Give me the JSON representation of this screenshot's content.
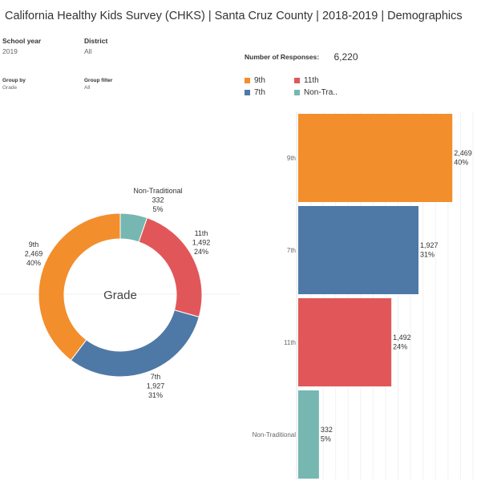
{
  "title": "California Healthy Kids Survey (CHKS) | Santa Cruz County | 2018-2019 | Demographics",
  "filters": {
    "school_year": {
      "label": "School year",
      "value": "2019"
    },
    "district": {
      "label": "District",
      "value": "All"
    },
    "group_by": {
      "label": "Group by",
      "value": "Grade"
    },
    "group_filter": {
      "label": "Group filter",
      "value": "All"
    }
  },
  "responses": {
    "label": "Number of Responses:",
    "value": "6,220"
  },
  "legend": [
    {
      "label": "9th",
      "color": "#F28E2B"
    },
    {
      "label": "11th",
      "color": "#E15759"
    },
    {
      "label": "7th",
      "color": "#4E79A7"
    },
    {
      "label": "Non-Tra..",
      "color": "#76B7B2"
    }
  ],
  "chart_data": [
    {
      "type": "pie",
      "center_label": "Grade",
      "slices": [
        {
          "label": "Non-Traditional",
          "value": 332,
          "value_text": "332",
          "percent_text": "5%",
          "color": "#76B7B2"
        },
        {
          "label": "11th",
          "value": 1492,
          "value_text": "1,492",
          "percent_text": "24%",
          "color": "#E15759"
        },
        {
          "label": "7th",
          "value": 1927,
          "value_text": "1,927",
          "percent_text": "31%",
          "color": "#4E79A7"
        },
        {
          "label": "9th",
          "value": 2469,
          "value_text": "2,469",
          "percent_text": "40%",
          "color": "#F28E2B"
        }
      ]
    },
    {
      "type": "bar",
      "orientation": "horizontal",
      "categories": [
        "9th",
        "7th",
        "11th",
        "Non-Traditional"
      ],
      "values": [
        2469,
        1927,
        1492,
        332
      ],
      "value_texts": [
        "2,469",
        "1,927",
        "1,492",
        "332"
      ],
      "percent_texts": [
        "40%",
        "31%",
        "24%",
        "5%"
      ],
      "colors": [
        "#F28E2B",
        "#4E79A7",
        "#E15759",
        "#76B7B2"
      ],
      "xlim": [
        0,
        2800
      ]
    }
  ]
}
